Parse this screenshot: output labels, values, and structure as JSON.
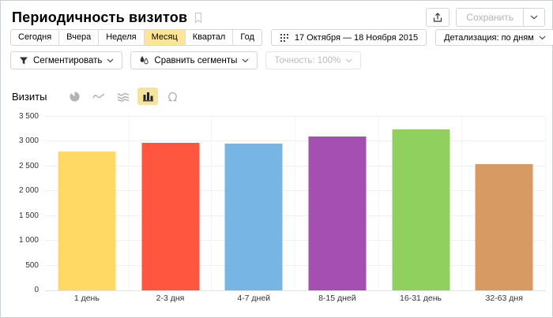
{
  "header": {
    "title": "Периодичность визитов",
    "save_label": "Сохранить"
  },
  "toolbar": {
    "period_tabs": [
      "Сегодня",
      "Вчера",
      "Неделя",
      "Месяц",
      "Квартал",
      "Год"
    ],
    "selected_tab": "Месяц",
    "date_range": "17 Октября — 18 Ноября 2015",
    "detail_label": "Детализация: по дням",
    "segment_label": "Сегментировать",
    "compare_label": "Сравнить сегменты",
    "precision_label": "Точность: 100%"
  },
  "metric": {
    "label": "Визиты",
    "chart_type_icons": [
      "pie-chart-icon",
      "line-chart-icon",
      "area-chart-icon",
      "bar-chart-icon",
      "map-icon"
    ],
    "selected_chart_type": "bar"
  },
  "chart_data": {
    "type": "bar",
    "title": "Периодичность визитов",
    "categories": [
      "1 день",
      "2-3 дня",
      "4-7 дней",
      "8-15 дней",
      "16-31 день",
      "32-63 дня"
    ],
    "values": [
      2800,
      2970,
      2960,
      3110,
      3240,
      2550
    ],
    "colors": [
      "#ffd963",
      "#ff5640",
      "#77b5e4",
      "#a64fb3",
      "#90d05f",
      "#d69a62"
    ],
    "xlabel": "",
    "ylabel": "Визиты",
    "ylim": [
      0,
      3500
    ],
    "ytick_step": 500,
    "ytick_labels": [
      "0",
      "500",
      "1 000",
      "1 500",
      "2 000",
      "2 500",
      "3 000",
      "3 500"
    ],
    "grid": true,
    "legend": false
  },
  "colors": {
    "accent_yellow": "#ffe596",
    "button_border": "#d5d5d5",
    "gridline": "#f0f0f0",
    "disabled_text": "#bcbcbc"
  }
}
